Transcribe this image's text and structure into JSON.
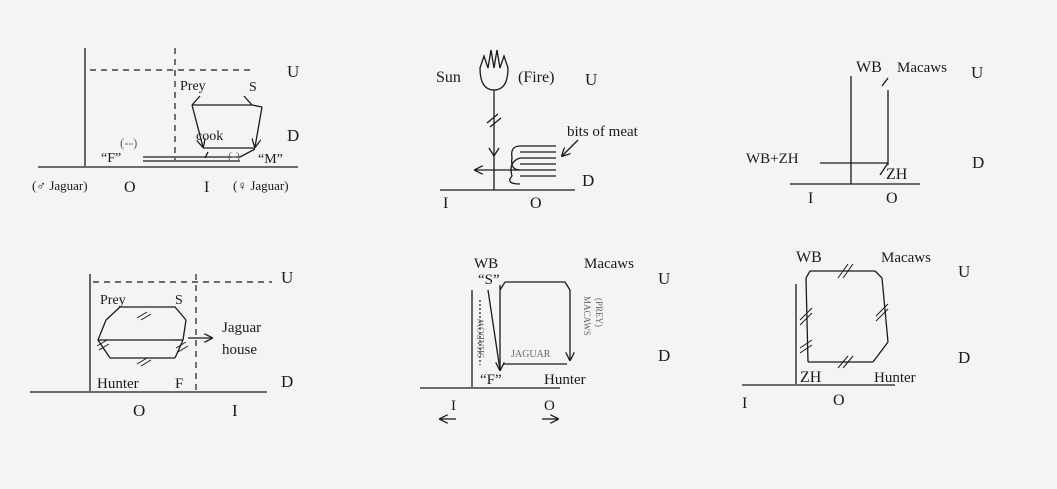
{
  "panels": {
    "p1": {
      "up": "U",
      "down": "D",
      "out": "O",
      "in": "I",
      "prey": "Prey",
      "s": "S",
      "cook": "cook",
      "f": "“F”",
      "m": "“M”",
      "neg2": "(--)",
      "neg1": "(-)",
      "male_jaguar": "(♂ Jaguar)",
      "female_jaguar": "(♀ Jaguar)"
    },
    "p2": {
      "sun": "Sun",
      "fire": "(Fire)",
      "up": "U",
      "down": "D",
      "meat": "bits of meat",
      "in": "I",
      "out": "O"
    },
    "p3": {
      "wb": "WB",
      "macaws": "Macaws",
      "up": "U",
      "down": "D",
      "wbzh": "WB+ZH",
      "zh": "ZH",
      "in": "I",
      "out": "O"
    },
    "p4": {
      "up": "U",
      "down": "D",
      "prey": "Prey",
      "s": "S",
      "hunter": "Hunter",
      "f": "F",
      "jaguar": "Jaguar",
      "house": "house",
      "out": "O",
      "in": "I"
    },
    "p5": {
      "wb": "WB",
      "s": "“S”",
      "macaws": "Macaws",
      "up": "U",
      "down": "D",
      "shadow": "SHADOW",
      "jaguar": "JAGUAR",
      "macaws_caps": "MACAWS",
      "prey_caps": "(PREY)",
      "f": "“F”",
      "hunter": "Hunter",
      "in": "I",
      "out": "O"
    },
    "p6": {
      "wb": "WB",
      "macaws": "Macaws",
      "up": "U",
      "down": "D",
      "zh": "ZH",
      "hunter": "Hunter",
      "in": "I",
      "out": "O"
    }
  }
}
